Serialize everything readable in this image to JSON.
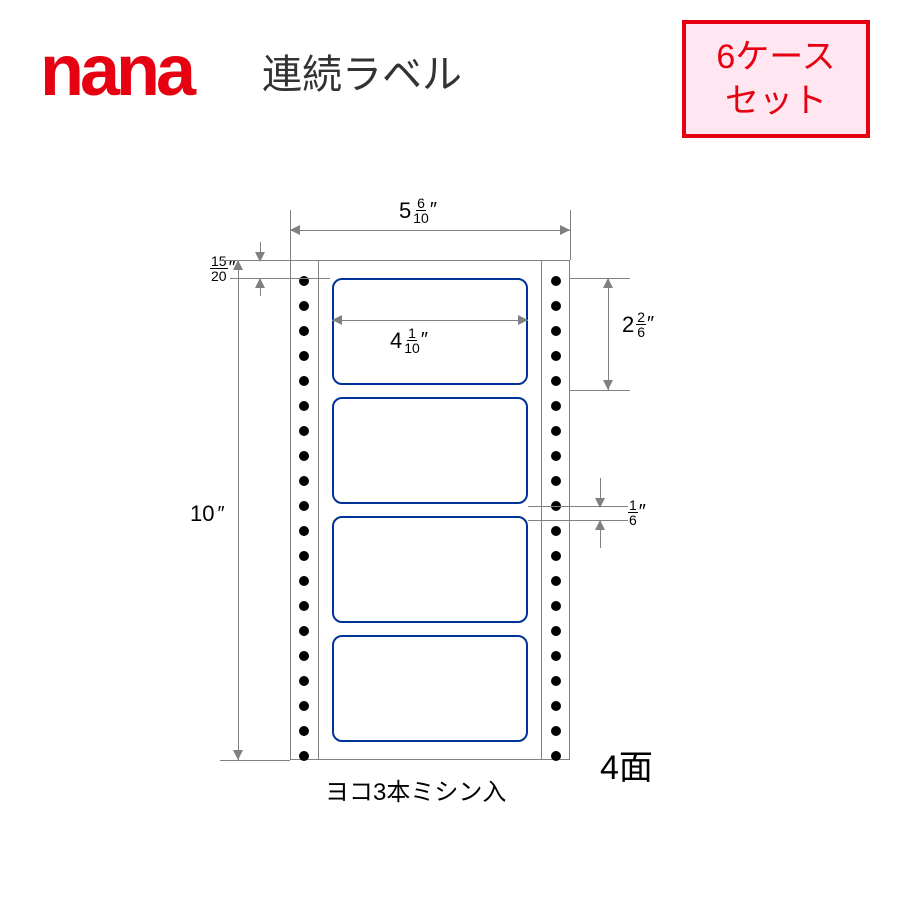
{
  "header": {
    "logo_text": "nana",
    "logo_color": "#e60012",
    "product_title": "連続ラベル"
  },
  "badge": {
    "line1": "6ケース",
    "line2": "セット",
    "border_color": "#e60012",
    "bg_color": "#ffe6f0",
    "text_color": "#e60012"
  },
  "diagram": {
    "sheet_width": {
      "whole": "5",
      "num": "6",
      "den": "10"
    },
    "label_width": {
      "whole": "4",
      "num": "1",
      "den": "10"
    },
    "top_margin": {
      "whole": "",
      "num": "15",
      "den": "20"
    },
    "label_height": {
      "whole": "2",
      "num": "2",
      "den": "6"
    },
    "sheet_height": {
      "whole": "10",
      "num": "",
      "den": ""
    },
    "gap": {
      "whole": "",
      "num": "1",
      "den": "6"
    },
    "labels_per_sheet": 4,
    "holes_per_side": 20,
    "face_count": "4面",
    "bottom_note": "ヨコ3本ミシン入",
    "colors": {
      "label_border": "#003399",
      "dim_line": "#808080",
      "hole": "#000000",
      "text": "#000000",
      "bg": "#ffffff"
    }
  }
}
